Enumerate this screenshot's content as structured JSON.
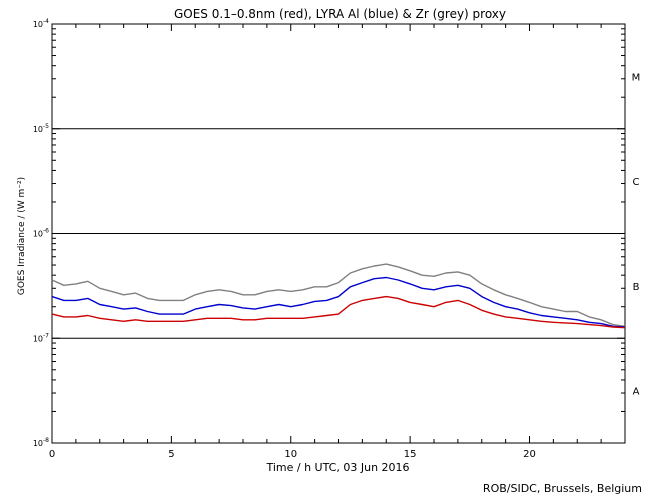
{
  "chart_data": {
    "type": "line",
    "title": "GOES 0.1–0.8nm (red), LYRA Al (blue) & Zr (grey) proxy",
    "xlabel": "Time / h UTC, 03 Jun 2016",
    "ylabel": "GOES Irradiance / (W m⁻²)",
    "xlim": [
      0,
      24
    ],
    "ylim": [
      1e-08,
      0.0001
    ],
    "yscale": "log",
    "x_ticks": [
      0,
      5,
      10,
      15,
      20
    ],
    "x_minor_step": 1,
    "y_ticks": [
      {
        "value": 1e-08,
        "base": "10",
        "exp": "-8"
      },
      {
        "value": 1e-07,
        "base": "10",
        "exp": "-7"
      },
      {
        "value": 1e-06,
        "base": "10",
        "exp": "-6"
      },
      {
        "value": 1e-05,
        "base": "10",
        "exp": "-5"
      },
      {
        "value": 0.0001,
        "base": "10",
        "exp": "-4"
      }
    ],
    "class_lines": [
      1e-07,
      1e-06,
      1e-05
    ],
    "class_labels": [
      {
        "label": "A",
        "y": 3.16e-08
      },
      {
        "label": "B",
        "y": 3.16e-07
      },
      {
        "label": "C",
        "y": 3.16e-06
      },
      {
        "label": "M",
        "y": 3.16e-05
      }
    ],
    "series": [
      {
        "color": "#808080",
        "x": [
          0,
          0.5,
          1,
          1.5,
          2,
          2.5,
          3,
          3.5,
          4,
          4.5,
          5,
          5.5,
          6,
          6.5,
          7,
          7.5,
          8,
          8.5,
          9,
          9.5,
          10,
          10.5,
          11,
          11.5,
          12,
          12.5,
          13,
          13.5,
          14,
          14.5,
          15,
          15.5,
          16,
          16.5,
          17,
          17.5,
          18,
          18.5,
          19,
          19.5,
          20,
          20.5,
          21,
          21.5,
          22,
          22.5,
          23,
          23.5,
          24
        ],
        "y": [
          3.6e-07,
          3.2e-07,
          3.3e-07,
          3.5e-07,
          3e-07,
          2.8e-07,
          2.6e-07,
          2.7e-07,
          2.4e-07,
          2.3e-07,
          2.3e-07,
          2.3e-07,
          2.6e-07,
          2.8e-07,
          2.9e-07,
          2.8e-07,
          2.6e-07,
          2.6e-07,
          2.8e-07,
          2.9e-07,
          2.8e-07,
          2.9e-07,
          3.1e-07,
          3.1e-07,
          3.4e-07,
          4.2e-07,
          4.6e-07,
          4.9e-07,
          5.1e-07,
          4.8e-07,
          4.4e-07,
          4e-07,
          3.9e-07,
          4.2e-07,
          4.3e-07,
          4e-07,
          3.3e-07,
          2.9e-07,
          2.6e-07,
          2.4e-07,
          2.2e-07,
          2e-07,
          1.9e-07,
          1.8e-07,
          1.8e-07,
          1.6e-07,
          1.5e-07,
          1.35e-07,
          1.3e-07
        ]
      },
      {
        "color": "#0000cc",
        "x": [
          0,
          0.5,
          1,
          1.5,
          2,
          2.5,
          3,
          3.5,
          4,
          4.5,
          5,
          5.5,
          6,
          6.5,
          7,
          7.5,
          8,
          8.5,
          9,
          9.5,
          10,
          10.5,
          11,
          11.5,
          12,
          12.5,
          13,
          13.5,
          14,
          14.5,
          15,
          15.5,
          16,
          16.5,
          17,
          17.5,
          18,
          18.5,
          19,
          19.5,
          20,
          20.5,
          21,
          21.5,
          22,
          22.5,
          23,
          23.5,
          24
        ],
        "y": [
          2.5e-07,
          2.3e-07,
          2.3e-07,
          2.4e-07,
          2.1e-07,
          2e-07,
          1.9e-07,
          1.95e-07,
          1.8e-07,
          1.7e-07,
          1.7e-07,
          1.7e-07,
          1.9e-07,
          2e-07,
          2.1e-07,
          2.05e-07,
          1.95e-07,
          1.9e-07,
          2e-07,
          2.1e-07,
          2e-07,
          2.1e-07,
          2.25e-07,
          2.3e-07,
          2.5e-07,
          3.1e-07,
          3.4e-07,
          3.7e-07,
          3.8e-07,
          3.6e-07,
          3.3e-07,
          3e-07,
          2.9e-07,
          3.1e-07,
          3.2e-07,
          3e-07,
          2.5e-07,
          2.2e-07,
          2e-07,
          1.9e-07,
          1.75e-07,
          1.65e-07,
          1.6e-07,
          1.55e-07,
          1.5e-07,
          1.42e-07,
          1.38e-07,
          1.3e-07,
          1.28e-07
        ]
      },
      {
        "color": "#cc0000",
        "x": [
          0,
          0.5,
          1,
          1.5,
          2,
          2.5,
          3,
          3.5,
          4,
          4.5,
          5,
          5.5,
          6,
          6.5,
          7,
          7.5,
          8,
          8.5,
          9,
          9.5,
          10,
          10.5,
          11,
          11.5,
          12,
          12.5,
          13,
          13.5,
          14,
          14.5,
          15,
          15.5,
          16,
          16.5,
          17,
          17.5,
          18,
          18.5,
          19,
          19.5,
          20,
          20.5,
          21,
          21.5,
          22,
          22.5,
          23,
          23.5,
          24
        ],
        "y": [
          1.7e-07,
          1.6e-07,
          1.6e-07,
          1.65e-07,
          1.55e-07,
          1.5e-07,
          1.45e-07,
          1.5e-07,
          1.45e-07,
          1.45e-07,
          1.45e-07,
          1.45e-07,
          1.5e-07,
          1.55e-07,
          1.55e-07,
          1.55e-07,
          1.5e-07,
          1.5e-07,
          1.55e-07,
          1.55e-07,
          1.55e-07,
          1.55e-07,
          1.6e-07,
          1.65e-07,
          1.7e-07,
          2.1e-07,
          2.3e-07,
          2.4e-07,
          2.5e-07,
          2.4e-07,
          2.2e-07,
          2.1e-07,
          2e-07,
          2.2e-07,
          2.3e-07,
          2.1e-07,
          1.85e-07,
          1.7e-07,
          1.6e-07,
          1.55e-07,
          1.5e-07,
          1.45e-07,
          1.42e-07,
          1.4e-07,
          1.38e-07,
          1.35e-07,
          1.32e-07,
          1.28e-07,
          1.26e-07
        ]
      }
    ],
    "grid": false
  },
  "credit": "ROB/SIDC, Brussels, Belgium"
}
